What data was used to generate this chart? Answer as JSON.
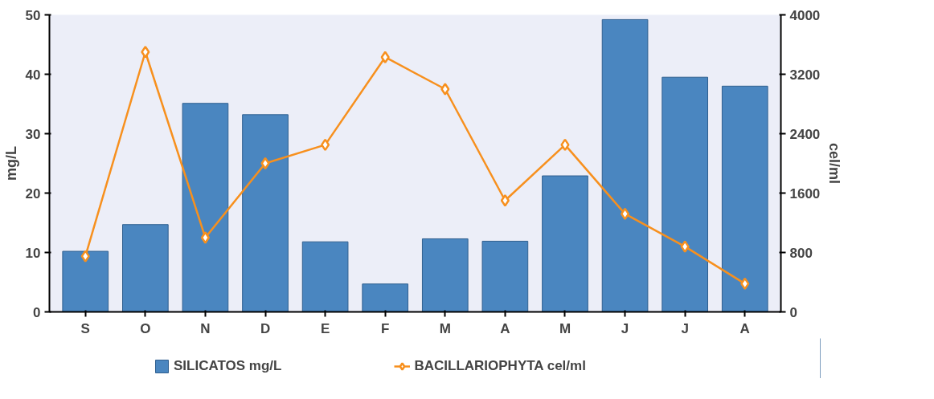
{
  "chart_data": {
    "type": "bar",
    "ylabel": "mg/L",
    "y2label": "cel/ml",
    "categories": [
      "S",
      "O",
      "N",
      "D",
      "E",
      "F",
      "M",
      "A",
      "M",
      "J",
      "J",
      "A"
    ],
    "series": [
      {
        "name": "SILICATOS mg/L",
        "color": "#4a86c0",
        "values": [
          10.2,
          14.7,
          35.1,
          33.2,
          11.8,
          4.7,
          12.3,
          11.9,
          22.9,
          49.2,
          39.5,
          38.0
        ]
      },
      {
        "name": "BACILLARIOPHYTA cel/ml",
        "type": "line",
        "axis": "y2",
        "color": "#f7901e",
        "marker": "diamond",
        "values": [
          750,
          3500,
          1000,
          2000,
          2250,
          3430,
          3000,
          1500,
          2250,
          1320,
          880,
          380
        ]
      }
    ],
    "ylim": [
      0,
      50
    ],
    "yticks": [
      0,
      10,
      20,
      30,
      40,
      50
    ],
    "y2lim": [
      0,
      4000
    ],
    "y2ticks": [
      0,
      800,
      1600,
      2400,
      3200,
      4000
    ],
    "grid": false,
    "legend": "bottom"
  }
}
